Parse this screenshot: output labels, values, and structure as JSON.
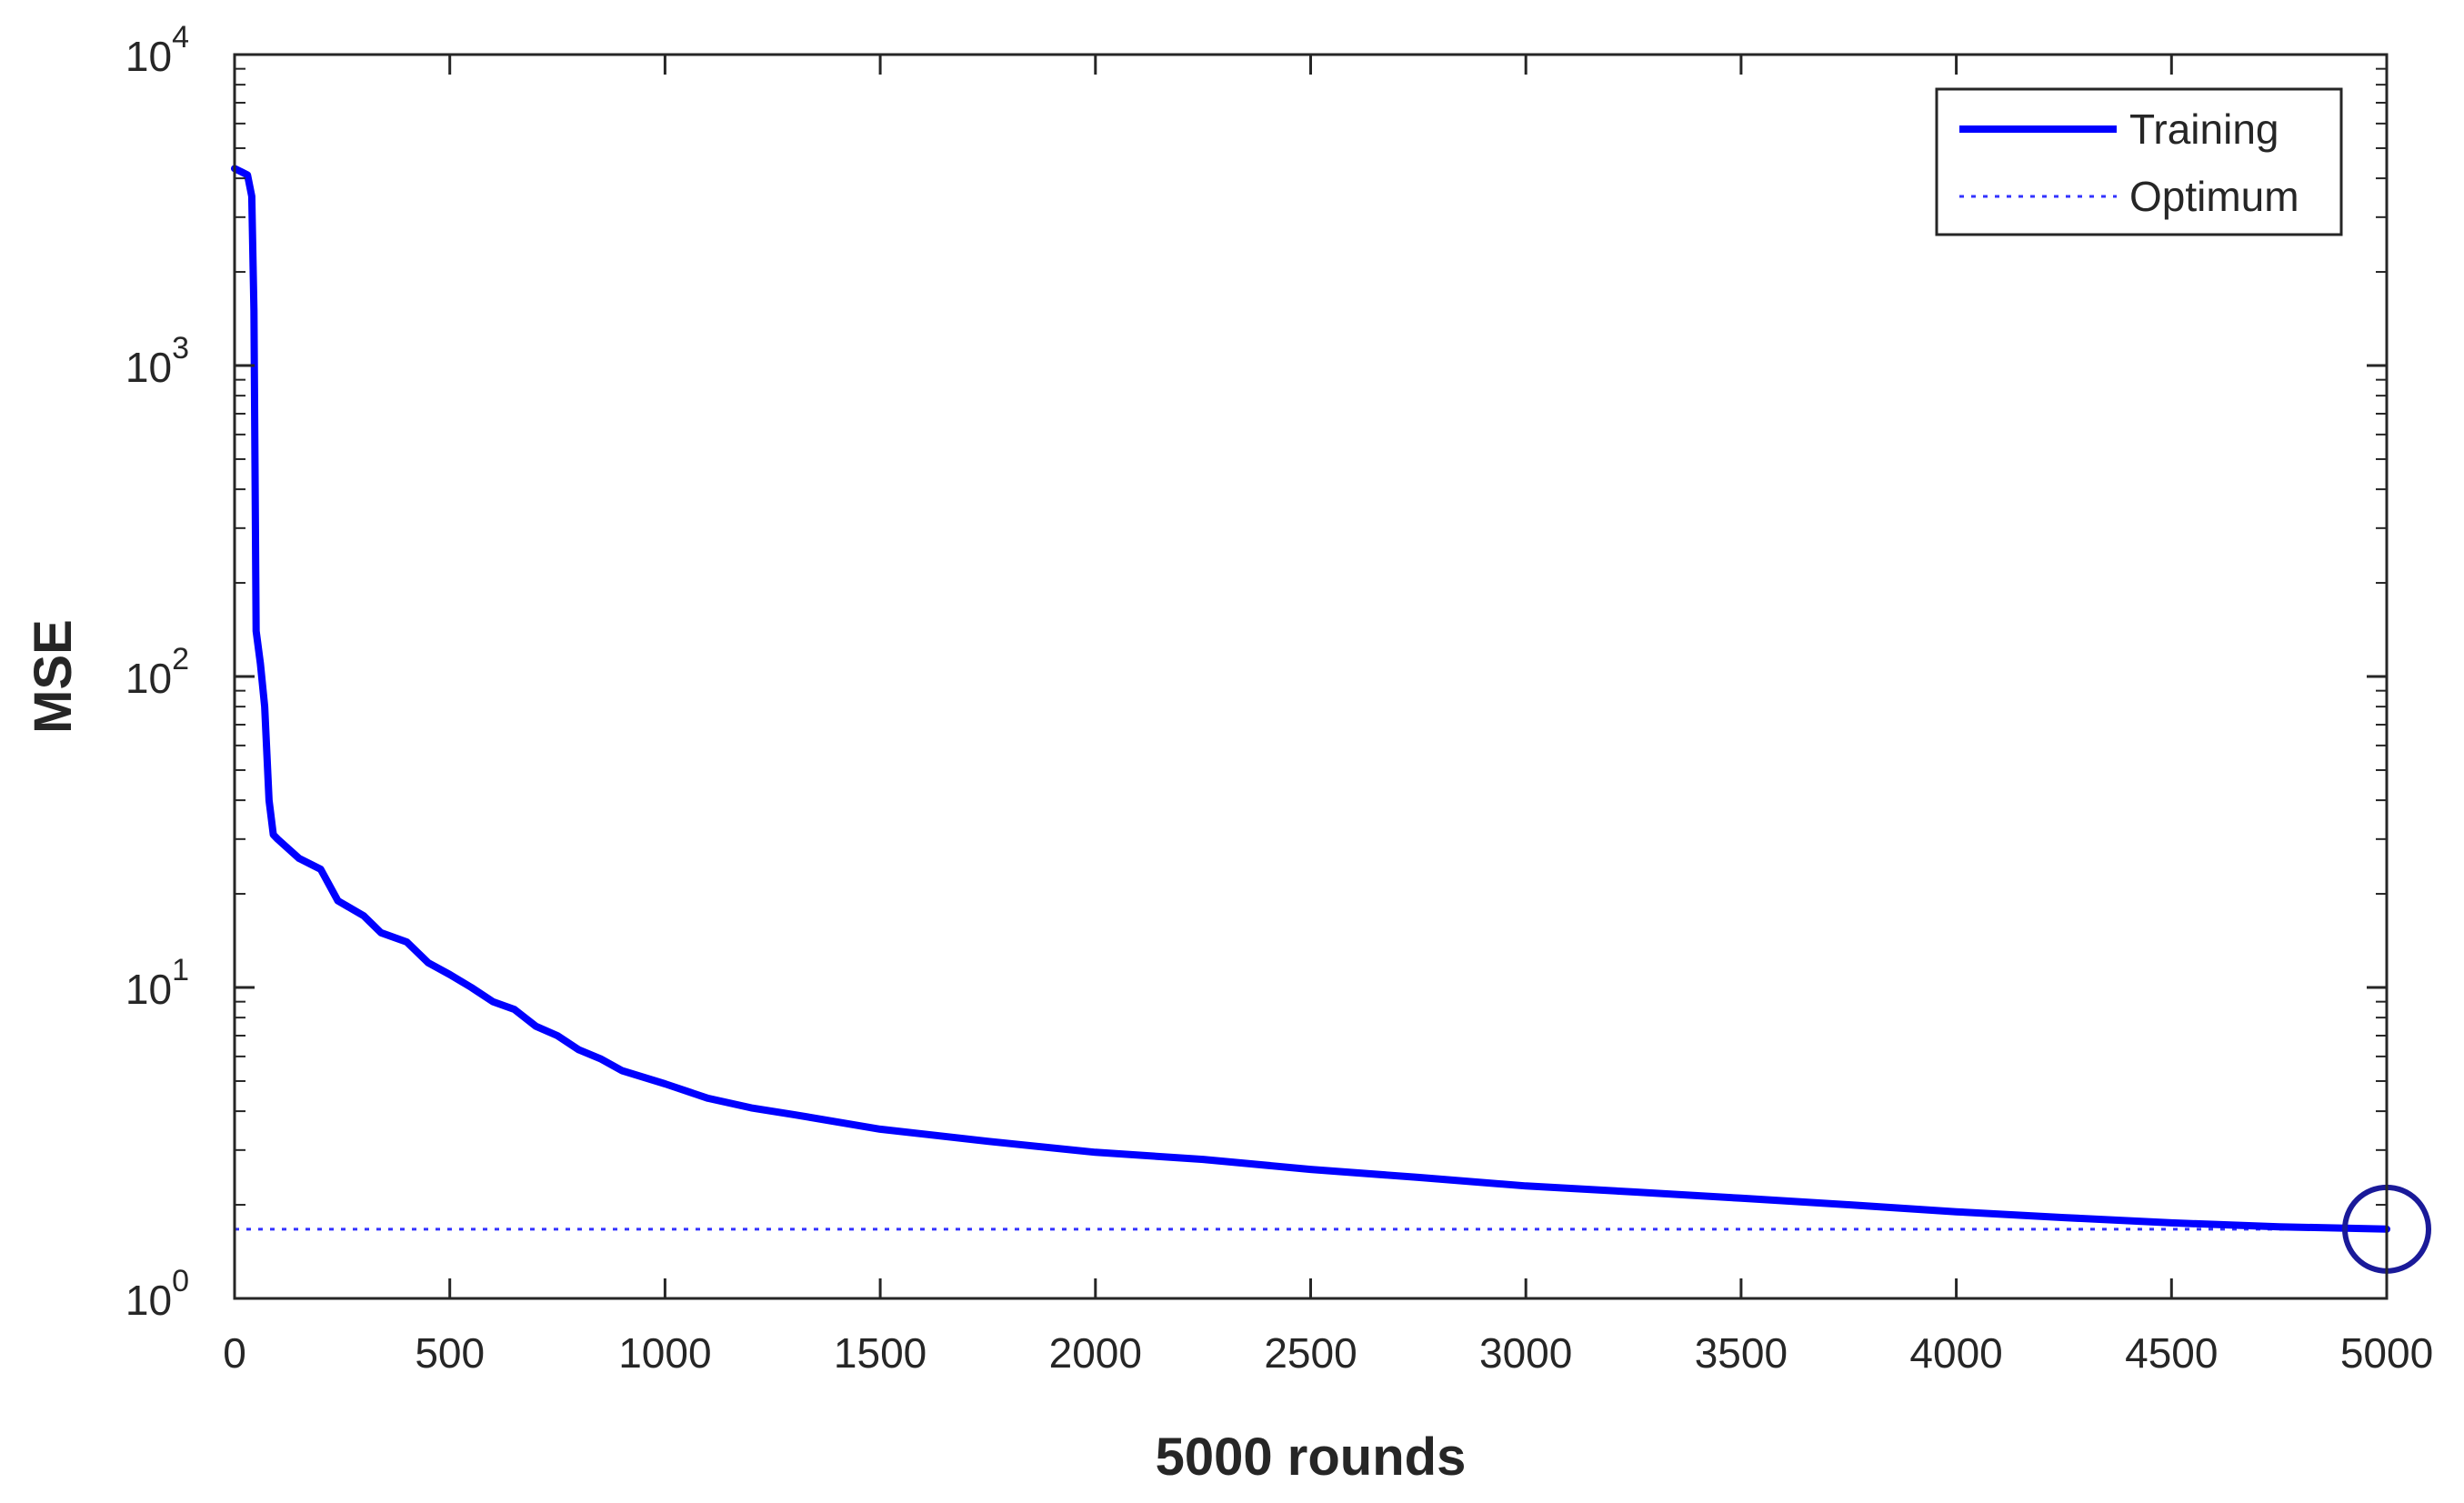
{
  "chart_data": {
    "type": "line",
    "xlabel": "5000 rounds",
    "ylabel": "MSE",
    "xlim": [
      0,
      5000
    ],
    "ylim": [
      1,
      10000
    ],
    "yscale": "log",
    "grid": false,
    "legend_position": "top-right",
    "xticks": [
      0,
      500,
      1000,
      1500,
      2000,
      2500,
      3000,
      3500,
      4000,
      4500,
      5000
    ],
    "xtick_labels": [
      "0",
      "500",
      "1000",
      "1500",
      "2000",
      "2500",
      "3000",
      "3500",
      "4000",
      "4500",
      "5000"
    ],
    "yticks": [
      1,
      10,
      100,
      1000,
      10000
    ],
    "ytick_base": "10",
    "ytick_exponents": [
      "0",
      "1",
      "2",
      "3",
      "4"
    ],
    "series": [
      {
        "name": "Training",
        "color": "#0000ff",
        "style": "solid",
        "x": [
          0,
          15,
          30,
          40,
          45,
          50,
          60,
          70,
          80,
          90,
          100,
          150,
          200,
          240,
          300,
          340,
          400,
          450,
          500,
          550,
          600,
          650,
          700,
          750,
          800,
          850,
          900,
          1000,
          1100,
          1200,
          1300,
          1500,
          1750,
          2000,
          2250,
          2500,
          2750,
          3000,
          3250,
          3500,
          3750,
          4000,
          4250,
          4500,
          4750,
          5000
        ],
        "y": [
          4300,
          4200,
          4100,
          3500,
          1500,
          140,
          110,
          80,
          40,
          31,
          30,
          26,
          24,
          19,
          17,
          15,
          14,
          12,
          11,
          10,
          9,
          8.5,
          7.5,
          7,
          6.3,
          5.9,
          5.4,
          4.9,
          4.4,
          4.1,
          3.9,
          3.5,
          3.2,
          2.95,
          2.8,
          2.6,
          2.45,
          2.3,
          2.2,
          2.1,
          2.0,
          1.9,
          1.82,
          1.75,
          1.7,
          1.67
        ]
      },
      {
        "name": "Optimum",
        "color": "#0000ff",
        "style": "dotted",
        "optimum_x": 5000,
        "optimum_y": 1.67
      }
    ]
  }
}
